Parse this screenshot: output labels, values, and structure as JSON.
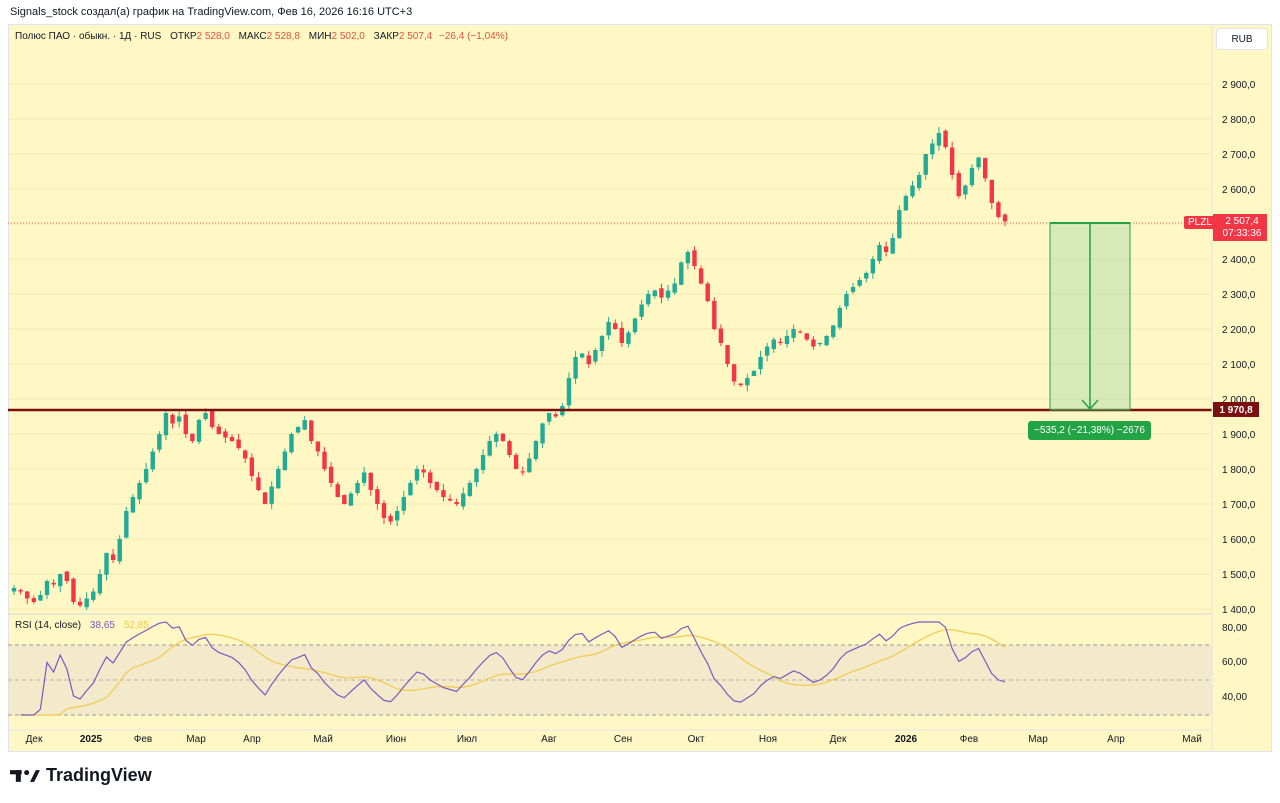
{
  "header": {
    "credit": "Signals_stock создал(а) график на TradingView.com, Фев 16, 2026 16:16 UTC+3"
  },
  "legend": {
    "symbol": "Полюс ПАО · обыкн. · 1Д · RUS",
    "open_label": "ОТКР",
    "open": "2 528,0",
    "high_label": "МАКС",
    "high": "2 528,8",
    "low_label": "МИН",
    "low": "2 502,0",
    "close_label": "ЗАКР",
    "close": "2 507,4",
    "change": "−26,4 (−1,04%)"
  },
  "currency_button": "RUB",
  "price_axis": [
    "2 900,0",
    "2 800,0",
    "2 700,0",
    "2 600,0",
    "2 500,0",
    "2 400,0",
    "2 300,0",
    "2 200,0",
    "2 100,0",
    "2 000,0",
    "1 900,0",
    "1 800,0",
    "1 700,0",
    "1 600,0",
    "1 500,0",
    "1 400,0"
  ],
  "ticker": "PLZL",
  "last_price": "2 507,4",
  "countdown": "07:33:36",
  "level_price": "1 970,8",
  "measure": "−535,2 (−21,38%) −2676",
  "rsi": {
    "label": "RSI (14, close)",
    "value": "38,65",
    "ma": "52,85",
    "axis": [
      "80,00",
      "60,00",
      "40,00"
    ]
  },
  "time_axis": [
    "Дек",
    "2025",
    "Фев",
    "Мар",
    "Апр",
    "Май",
    "Июн",
    "Июл",
    "Авг",
    "Сен",
    "Окт",
    "Ноя",
    "Дек",
    "2026",
    "Фев",
    "Мар",
    "Апр",
    "Май"
  ],
  "brand": "TradingView",
  "colors": {
    "up": "#22ab94",
    "down": "#f23645",
    "background": "#fff8c4",
    "level": "#7a1010",
    "rsi": "#7e57c2",
    "rsi_ma": "#f2c94c"
  },
  "chart_data": {
    "type": "candlestick",
    "ylim": [
      1400,
      2950
    ],
    "support_level": 1970.8,
    "last_close": 2507.4,
    "closes": [
      1460,
      1450,
      1430,
      1420,
      1440,
      1480,
      1470,
      1500,
      1480,
      1420,
      1410,
      1430,
      1450,
      1500,
      1560,
      1540,
      1600,
      1680,
      1720,
      1760,
      1800,
      1850,
      1900,
      1960,
      1930,
      1950,
      1900,
      1880,
      1940,
      1960,
      1920,
      1900,
      1890,
      1880,
      1860,
      1830,
      1780,
      1740,
      1700,
      1750,
      1800,
      1850,
      1900,
      1920,
      1940,
      1880,
      1850,
      1800,
      1760,
      1720,
      1700,
      1730,
      1760,
      1790,
      1740,
      1700,
      1660,
      1650,
      1680,
      1720,
      1760,
      1800,
      1790,
      1760,
      1740,
      1720,
      1710,
      1700,
      1730,
      1760,
      1800,
      1840,
      1880,
      1900,
      1880,
      1840,
      1800,
      1790,
      1830,
      1880,
      1930,
      1960,
      1950,
      1980,
      2060,
      2120,
      2130,
      2100,
      2140,
      2180,
      2220,
      2200,
      2160,
      2190,
      2230,
      2270,
      2300,
      2310,
      2290,
      2310,
      2330,
      2390,
      2420,
      2380,
      2330,
      2280,
      2200,
      2160,
      2100,
      2050,
      2040,
      2060,
      2080,
      2120,
      2150,
      2170,
      2160,
      2180,
      2200,
      2190,
      2170,
      2150,
      2160,
      2180,
      2210,
      2260,
      2300,
      2320,
      2340,
      2360,
      2400,
      2440,
      2420,
      2460,
      2540,
      2580,
      2610,
      2640,
      2700,
      2730,
      2760,
      2720,
      2640,
      2580,
      2610,
      2660,
      2690,
      2630,
      2560,
      2520,
      2507.4
    ]
  }
}
